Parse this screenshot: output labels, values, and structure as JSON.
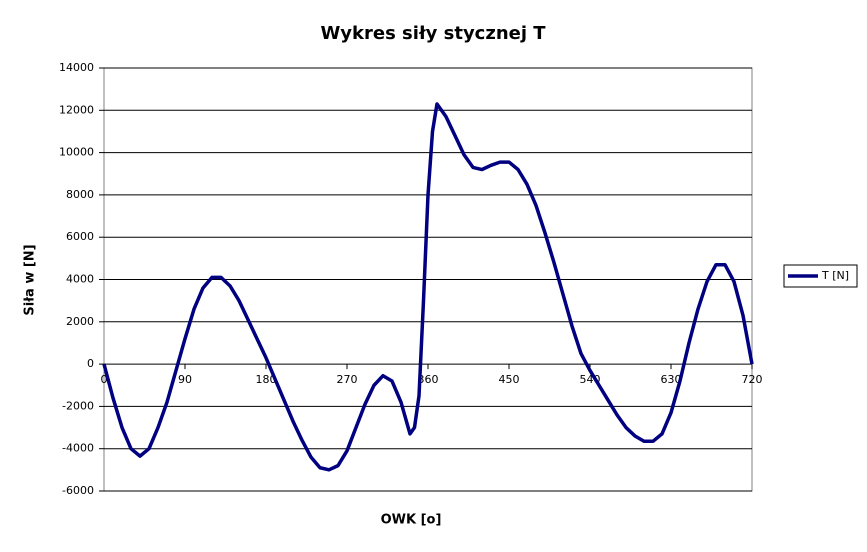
{
  "chart_data": {
    "type": "line",
    "title": "Wykres siły stycznej T",
    "x_label": "OWK [o]",
    "y_label": "Siła w [N]",
    "x": [
      0,
      10,
      20,
      30,
      40,
      50,
      60,
      70,
      80,
      90,
      100,
      110,
      120,
      130,
      140,
      150,
      160,
      170,
      180,
      190,
      200,
      210,
      220,
      230,
      240,
      250,
      260,
      270,
      280,
      290,
      300,
      310,
      320,
      330,
      340,
      345,
      350,
      355,
      360,
      365,
      370,
      380,
      390,
      400,
      410,
      420,
      430,
      440,
      450,
      460,
      470,
      480,
      490,
      500,
      510,
      520,
      530,
      540,
      550,
      560,
      570,
      580,
      590,
      600,
      610,
      620,
      630,
      640,
      650,
      660,
      670,
      680,
      690,
      700,
      710,
      720
    ],
    "series": [
      {
        "name": "T [N]",
        "color": "#000080",
        "values": [
          0,
          -1600,
          -3000,
          -4000,
          -4350,
          -4000,
          -3000,
          -1800,
          -300,
          1200,
          2600,
          3600,
          4100,
          4100,
          3700,
          3000,
          2100,
          1200,
          300,
          -700,
          -1700,
          -2700,
          -3600,
          -4400,
          -4900,
          -5000,
          -4800,
          -4100,
          -3000,
          -1900,
          -1000,
          -550,
          -800,
          -1800,
          -3300,
          -3000,
          -1500,
          3000,
          8000,
          11000,
          12300,
          11700,
          10800,
          9900,
          9300,
          9200,
          9400,
          9550,
          9550,
          9200,
          8500,
          7500,
          6200,
          4800,
          3300,
          1800,
          500,
          -300,
          -1000,
          -1700,
          -2400,
          -3000,
          -3400,
          -3650,
          -3650,
          -3300,
          -2300,
          -800,
          1000,
          2600,
          3900,
          4700,
          4700,
          3900,
          2300,
          0
        ]
      }
    ],
    "xlim": [
      0,
      720
    ],
    "xticks": [
      0,
      90,
      180,
      270,
      360,
      450,
      540,
      630,
      720
    ],
    "ylim": [
      -6000,
      14000
    ],
    "yticks": [
      -6000,
      -4000,
      -2000,
      0,
      2000,
      4000,
      6000,
      8000,
      10000,
      12000,
      14000
    ],
    "grid": true,
    "legend": "right"
  }
}
